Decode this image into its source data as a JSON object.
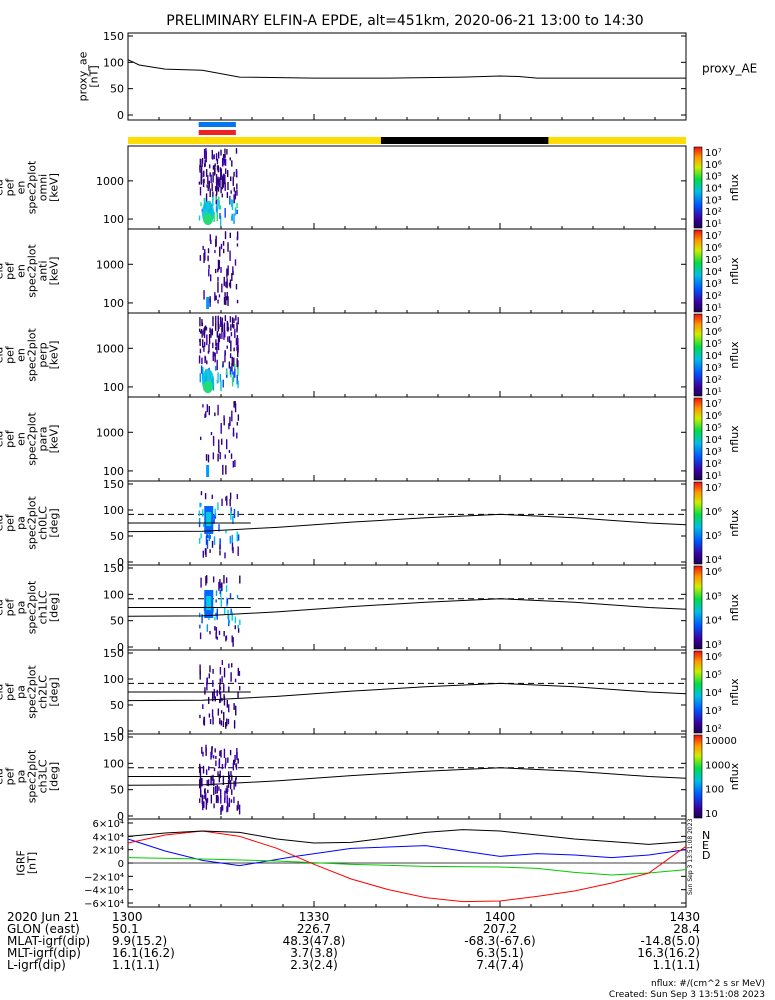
{
  "title": "PRELIMINARY ELFIN-A EPDE, alt=451km, 2020-06-21 13:00 to 14:30",
  "time_ticks": [
    "1300",
    "1330",
    "1400",
    "1430"
  ],
  "time_range_hours": [
    13.0,
    14.5
  ],
  "panels": [
    {
      "id": "proxy_ae",
      "ylabel": [
        "proxy_ae",
        "[nT]"
      ],
      "ticks": [
        "150",
        "100",
        "50",
        "0"
      ],
      "side_label": "proxy_AE"
    },
    {
      "id": "omni",
      "ylabel": [
        "ela",
        "pef",
        "en",
        "spec2plot",
        "omni",
        "[keV]"
      ],
      "ticks": [
        "1000",
        "100"
      ],
      "colorbar_label": "nflux",
      "colorbar_ticks": [
        "10⁷",
        "10⁶",
        "10⁵",
        "10⁴",
        "10³",
        "10²",
        "10¹"
      ]
    },
    {
      "id": "anti",
      "ylabel": [
        "ela",
        "pef",
        "en",
        "spec2plot",
        "anti",
        "[keV]"
      ],
      "ticks": [
        "1000",
        "100"
      ],
      "colorbar_label": "nflux",
      "colorbar_ticks": [
        "10⁷",
        "10⁶",
        "10⁵",
        "10⁴",
        "10³",
        "10²",
        "10¹"
      ]
    },
    {
      "id": "perp",
      "ylabel": [
        "ela",
        "pef",
        "en",
        "spec2plot",
        "perp",
        "[keV]"
      ],
      "ticks": [
        "1000",
        "100"
      ],
      "colorbar_label": "nflux",
      "colorbar_ticks": [
        "10⁷",
        "10⁶",
        "10⁵",
        "10⁴",
        "10³",
        "10²",
        "10¹"
      ]
    },
    {
      "id": "para",
      "ylabel": [
        "ela",
        "pef",
        "en",
        "spec2plot",
        "para",
        "[keV]"
      ],
      "ticks": [
        "1000",
        "100"
      ],
      "colorbar_label": "nflux",
      "colorbar_ticks": [
        "10⁷",
        "10⁶",
        "10⁵",
        "10⁴",
        "10³",
        "10²",
        "10¹"
      ]
    },
    {
      "id": "ch0LC",
      "ylabel": [
        "ela",
        "pef",
        "pa",
        "spec2plot",
        "ch0LC",
        "[deg]"
      ],
      "ticks": [
        "150",
        "100",
        "50",
        "0"
      ],
      "colorbar_label": "nflux",
      "colorbar_ticks": [
        "10⁷",
        "10⁶",
        "10⁵",
        "10⁴"
      ]
    },
    {
      "id": "ch1LC",
      "ylabel": [
        "ela",
        "pef",
        "pa",
        "spec2plot",
        "ch1LC",
        "[deg]"
      ],
      "ticks": [
        "150",
        "100",
        "50",
        "0"
      ],
      "colorbar_label": "nflux",
      "colorbar_ticks": [
        "10⁶",
        "10⁵",
        "10⁴",
        "10³"
      ]
    },
    {
      "id": "ch2LC",
      "ylabel": [
        "ela",
        "pef",
        "pa",
        "spec2plot",
        "ch2LC",
        "[deg]"
      ],
      "ticks": [
        "150",
        "100",
        "50",
        "0"
      ],
      "colorbar_label": "nflux",
      "colorbar_ticks": [
        "10⁶",
        "10⁵",
        "10⁴",
        "10³",
        "10²"
      ]
    },
    {
      "id": "ch3LC",
      "ylabel": [
        "ela",
        "pef",
        "pa",
        "spec2plot",
        "ch3LC",
        "[deg]"
      ],
      "ticks": [
        "150",
        "100",
        "50",
        "0"
      ],
      "colorbar_label": "nflux",
      "colorbar_ticks": [
        "10000",
        "1000",
        "100",
        "10"
      ]
    },
    {
      "id": "igrf",
      "ylabel": [
        "IGRF",
        "[nT]"
      ],
      "ticks": [
        "6×10⁴",
        "4×10⁴",
        "2×10⁴",
        "0",
        "−2×10⁴",
        "−4×10⁴",
        "−6×10⁴"
      ],
      "legend": [
        "N",
        "E",
        "D"
      ]
    }
  ],
  "chart_data": {
    "type": "line",
    "x_unit": "hours UT",
    "proxy_ae": {
      "ylim": [
        0,
        150
      ],
      "x": [
        13.0,
        13.03,
        13.1,
        13.2,
        13.3,
        13.5,
        13.6,
        13.7,
        13.8,
        13.9,
        14.0,
        14.05,
        14.1,
        14.2,
        14.3,
        14.5
      ],
      "y": [
        105,
        95,
        87,
        85,
        72,
        70,
        70,
        70,
        71,
        72,
        74,
        73,
        70,
        70,
        70,
        70
      ]
    },
    "loss_cone_lines": {
      "ylim": [
        0,
        180
      ],
      "solid_upper": 90,
      "dashed": 110,
      "x": [
        13.0,
        13.2,
        13.4,
        13.6,
        13.8,
        14.0,
        14.2,
        14.4,
        14.5
      ],
      "lower": [
        70,
        71,
        80,
        92,
        102,
        110,
        102,
        90,
        86
      ]
    },
    "igrf": {
      "ylim": [
        -60000,
        60000
      ],
      "series": [
        {
          "name": "N",
          "color": "#0000ff",
          "x": [
            13.0,
            13.1,
            13.2,
            13.3,
            13.45,
            13.6,
            13.8,
            13.9,
            14.0,
            14.1,
            14.2,
            14.3,
            14.4,
            14.5
          ],
          "y": [
            36000,
            18000,
            4000,
            -4000,
            10000,
            22000,
            26000,
            18000,
            10000,
            14000,
            12000,
            8000,
            12000,
            20000
          ]
        },
        {
          "name": "E",
          "color": "#00cc00",
          "x": [
            13.0,
            13.2,
            13.4,
            13.6,
            13.8,
            14.0,
            14.1,
            14.2,
            14.3,
            14.4,
            14.5
          ],
          "y": [
            8000,
            6000,
            3000,
            -2000,
            -5000,
            -6000,
            -8000,
            -14000,
            -18000,
            -15000,
            -10000
          ]
        },
        {
          "name": "D",
          "color": "#ff0000",
          "x": [
            13.0,
            13.1,
            13.2,
            13.3,
            13.4,
            13.5,
            13.6,
            13.7,
            13.8,
            13.9,
            14.0,
            14.1,
            14.2,
            14.3,
            14.4,
            14.5
          ],
          "y": [
            30000,
            42000,
            48000,
            40000,
            22000,
            -2000,
            -24000,
            -40000,
            -52000,
            -58000,
            -57000,
            -50000,
            -42000,
            -30000,
            -15000,
            25000
          ]
        },
        {
          "name": "total",
          "color": "#000000",
          "x": [
            13.0,
            13.1,
            13.2,
            13.3,
            13.4,
            13.5,
            13.6,
            13.7,
            13.8,
            13.9,
            14.0,
            14.1,
            14.2,
            14.3,
            14.4,
            14.5
          ],
          "y": [
            40000,
            45000,
            48000,
            46000,
            36000,
            30000,
            31000,
            38000,
            46000,
            50000,
            48000,
            42000,
            36000,
            32000,
            28000,
            32000
          ]
        }
      ]
    }
  },
  "orbit_bar": {
    "colors": {
      "sunlit": "#ffdd00",
      "eclipse": "#000000",
      "north": "#0077ee",
      "south": "#ee2222"
    },
    "eclipse_range_hours": [
      13.68,
      14.13
    ],
    "science_zone_hours": [
      13.19,
      13.29
    ]
  },
  "ephemeris": {
    "rows": [
      {
        "label": "2020 Jun 21",
        "values": [
          "1300",
          "1330",
          "1400",
          "1430"
        ]
      },
      {
        "label": "GLON (east)",
        "values": [
          "50.1",
          "226.7",
          "207.2",
          "28.4"
        ]
      },
      {
        "label": "MLAT-igrf(dip)",
        "values": [
          "9.9(15.2)",
          "48.3(47.8)",
          "-68.3(-67.6)",
          "-14.8(5.0)"
        ]
      },
      {
        "label": "MLT-igrf(dip)",
        "values": [
          "16.1(16.2)",
          "3.7(3.8)",
          "6.3(5.1)",
          "16.3(16.2)"
        ]
      },
      {
        "label": "L-igrf(dip)",
        "values": [
          "1.1(1.1)",
          "2.3(2.4)",
          "7.4(7.4)",
          "1.1(1.1)"
        ]
      }
    ]
  },
  "footer": {
    "units": "nflux: #/(cm^2 s sr MeV)",
    "created": "Created: Sun Sep  3 13:51:08 2023",
    "side_stamp": "Sun Sep  3 13:51:08 2023"
  }
}
